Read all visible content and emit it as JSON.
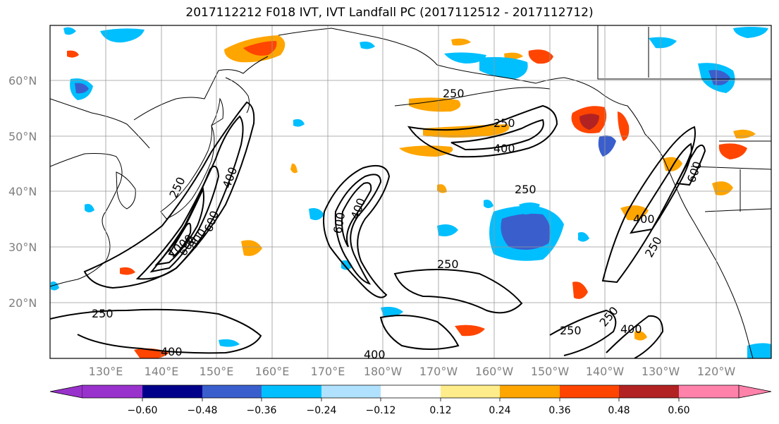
{
  "title": "2017112212 F018 IVT, IVT Landfall PC (2017112512 - 2017112712)",
  "lat_labels": [
    "60°N",
    "50°N",
    "40°N",
    "30°N",
    "20°N"
  ],
  "lon_labels": [
    "130°E",
    "140°E",
    "150°E",
    "160°E",
    "170°E",
    "180°W",
    "170°W",
    "160°W",
    "150°W",
    "140°W",
    "130°W",
    "120°W"
  ],
  "colorbar": {
    "colors": [
      "#9932cc",
      "#00008b",
      "#3a5fcd",
      "#00bfff",
      "#b0e2ff",
      "#ffffff",
      "#ffec8b",
      "#ffa500",
      "#ff4500",
      "#b22222",
      "#ff82ab"
    ],
    "ticks": [
      "−0.60",
      "−0.48",
      "−0.36",
      "−0.24",
      "−0.12",
      "0.12",
      "0.24",
      "0.36",
      "0.48",
      "0.60"
    ]
  },
  "contour_labels": [
    "250",
    "250",
    "400",
    "250",
    "250",
    "250",
    "400",
    "250",
    "400",
    "250",
    "400",
    "600",
    "400",
    "600",
    "400",
    "250",
    "400",
    "600",
    "1000",
    "600",
    "800",
    "250",
    "400",
    "400",
    "600"
  ]
}
